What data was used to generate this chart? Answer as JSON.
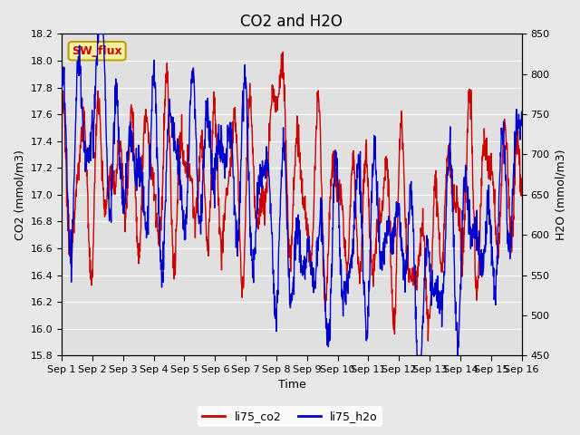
{
  "title": "CO2 and H2O",
  "xlabel": "Time",
  "ylabel_left": "CO2 (mmol/m3)",
  "ylabel_right": "H2O (mmol/m3)",
  "ylim_left": [
    15.8,
    18.2
  ],
  "ylim_right": [
    450,
    850
  ],
  "co2_color": "#cc0000",
  "h2o_color": "#0000cc",
  "legend_co2": "li75_co2",
  "legend_h2o": "li75_h2o",
  "sw_flux_label": "SW_flux",
  "fig_bg_color": "#e8e8e8",
  "plot_bg_color": "#e0e0e0",
  "grid_color": "#ffffff",
  "xtick_labels": [
    "Sep 1",
    "Sep 2",
    "Sep 3",
    "Sep 4",
    "Sep 5",
    "Sep 6",
    "Sep 7",
    "Sep 8",
    "Sep 9",
    "Sep 10",
    "Sep 11",
    "Sep 12",
    "Sep 13",
    "Sep 14",
    "Sep 15",
    "Sep 16"
  ],
  "yticks_left": [
    15.8,
    16.0,
    16.2,
    16.4,
    16.6,
    16.8,
    17.0,
    17.2,
    17.4,
    17.6,
    17.8,
    18.0,
    18.2
  ],
  "yticks_right": [
    450,
    500,
    550,
    600,
    650,
    700,
    750,
    800,
    850
  ],
  "line_width": 1.0,
  "title_fontsize": 12,
  "axis_label_fontsize": 9,
  "tick_fontsize": 8,
  "legend_fontsize": 9,
  "sw_fontsize": 9
}
